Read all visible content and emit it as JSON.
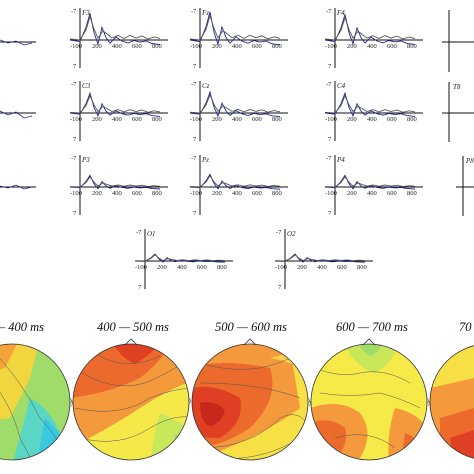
{
  "erp": {
    "y_top_tick": "-7",
    "y_bottom_tick": "7",
    "x_ticks": [
      "-100",
      "200",
      "400",
      "600",
      "800"
    ],
    "panels": [
      {
        "electrode": "F3"
      },
      {
        "electrode": "Fz"
      },
      {
        "electrode": "F4"
      },
      {
        "electrode": "C3"
      },
      {
        "electrode": "Cz"
      },
      {
        "electrode": "C4"
      },
      {
        "electrode": "P3"
      },
      {
        "electrode": "Pz"
      },
      {
        "electrode": "P4"
      },
      {
        "electrode": "O1"
      },
      {
        "electrode": "O2"
      }
    ],
    "partial_labels": [
      "T8",
      "P8"
    ],
    "series_colors": [
      "#1f2a8c",
      "#555555"
    ]
  },
  "topomaps": {
    "windows": [
      "— 400 ms",
      "400 — 500 ms",
      "500 — 600 ms",
      "600 — 700 ms",
      "70"
    ]
  }
}
